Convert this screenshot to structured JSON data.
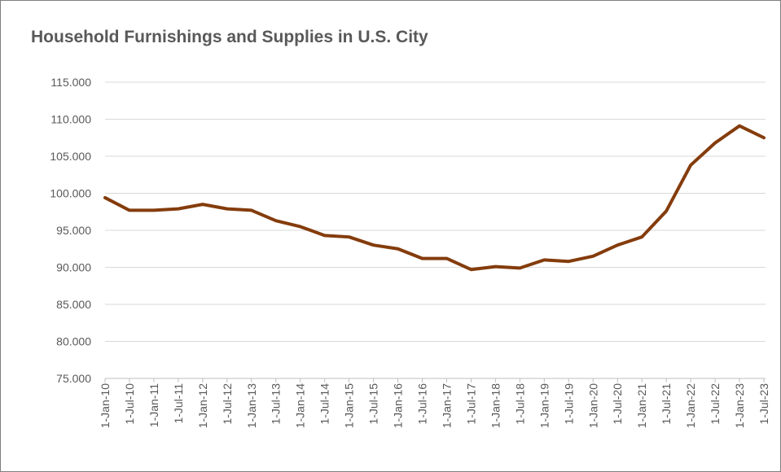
{
  "chart_data": {
    "type": "line",
    "title": "Household Furnishings and Supplies in U.S. City",
    "categories": [
      "1-Jan-10",
      "1-Jul-10",
      "1-Jan-11",
      "1-Jul-11",
      "1-Jan-12",
      "1-Jul-12",
      "1-Jan-13",
      "1-Jul-13",
      "1-Jan-14",
      "1-Jul-14",
      "1-Jan-15",
      "1-Jul-15",
      "1-Jan-16",
      "1-Jul-16",
      "1-Jan-17",
      "1-Jul-17",
      "1-Jan-18",
      "1-Jul-18",
      "1-Jan-19",
      "1-Jul-19",
      "1-Jan-20",
      "1-Jul-20",
      "1-Jan-21",
      "1-Jul-21",
      "1-Jan-22",
      "1-Jul-22",
      "1-Jan-23",
      "1-Jul-23"
    ],
    "values": [
      99.4,
      97.7,
      97.7,
      97.9,
      98.5,
      97.9,
      97.7,
      96.3,
      95.5,
      94.3,
      94.1,
      93.0,
      92.5,
      91.2,
      91.2,
      89.7,
      90.1,
      89.9,
      91.0,
      90.8,
      91.5,
      93.0,
      94.1,
      97.6,
      103.8,
      106.8,
      109.1,
      107.5
    ],
    "color": "#843c0c",
    "ylim": [
      75,
      115
    ],
    "yticks": [
      {
        "value": 75,
        "label": "75.000"
      },
      {
        "value": 80,
        "label": "80.000"
      },
      {
        "value": 85,
        "label": "85.000"
      },
      {
        "value": 90,
        "label": "90.000"
      },
      {
        "value": 95,
        "label": "95.000"
      },
      {
        "value": 100,
        "label": "100.000"
      },
      {
        "value": 105,
        "label": "105.000"
      },
      {
        "value": 110,
        "label": "110.000"
      },
      {
        "value": 115,
        "label": "115.000"
      }
    ],
    "grid": true
  }
}
